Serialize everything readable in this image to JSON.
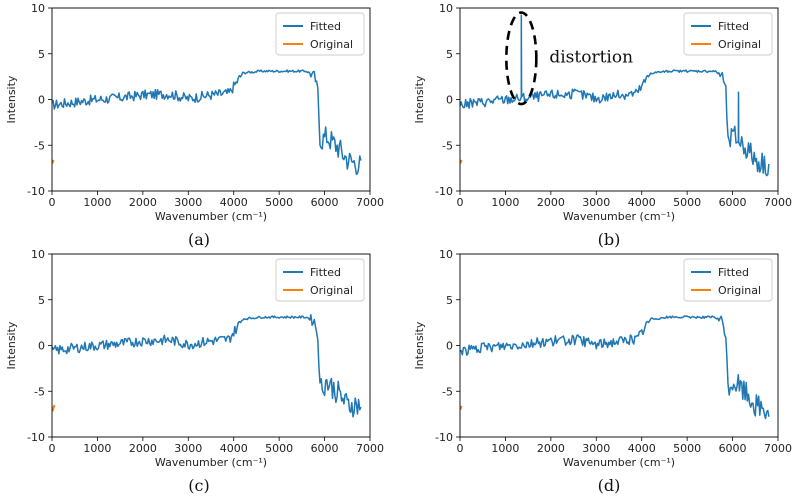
{
  "chart_data": [
    {
      "type": "line",
      "panel": "(a)",
      "xlabel": "Wavenumber (cm⁻¹)",
      "ylabel": "Intensity",
      "xlim": [
        0,
        7000
      ],
      "ylim": [
        -10,
        10
      ],
      "xticks": [
        "0",
        "1000",
        "2000",
        "3000",
        "4000",
        "5000",
        "6000",
        "7000"
      ],
      "yticks": [
        "10",
        "5",
        "0",
        "-5",
        "-10"
      ],
      "legend": {
        "position": "top-right",
        "entries": [
          "Fitted",
          "Original"
        ]
      },
      "series": [
        {
          "name": "Fitted",
          "color": "#1f77b4",
          "x_range": [
            0,
            6800
          ],
          "spike": null,
          "profile": [
            [
              0,
              -0.6
            ],
            [
              300,
              -0.4
            ],
            [
              800,
              -0.1
            ],
            [
              1500,
              0.2
            ],
            [
              2000,
              0.5
            ],
            [
              2600,
              0.6
            ],
            [
              3000,
              0.1
            ],
            [
              3500,
              0.5
            ],
            [
              3900,
              0.7
            ],
            [
              4050,
              1.8
            ],
            [
              4200,
              2.9
            ],
            [
              4600,
              3.1
            ],
            [
              5200,
              3.1
            ],
            [
              5600,
              3.1
            ],
            [
              5780,
              2.6
            ],
            [
              5850,
              1.0
            ],
            [
              5900,
              -4.5
            ],
            [
              6050,
              -4.0
            ],
            [
              6300,
              -5.2
            ],
            [
              6500,
              -6.5
            ],
            [
              6800,
              -7.2
            ]
          ]
        },
        {
          "name": "Original",
          "color": "#ff7f0e",
          "x_range": [
            0,
            20
          ],
          "y_range": [
            -7.0,
            -6.6
          ]
        }
      ]
    },
    {
      "type": "line",
      "panel": "(b)",
      "xlabel": "Wavenumber (cm⁻¹)",
      "ylabel": "Intensity",
      "xlim": [
        0,
        7000
      ],
      "ylim": [
        -10,
        10
      ],
      "xticks": [
        "0",
        "1000",
        "2000",
        "3000",
        "4000",
        "5000",
        "6000",
        "7000"
      ],
      "yticks": [
        "10",
        "5",
        "0",
        "-5",
        "-10"
      ],
      "legend": {
        "position": "top-right",
        "entries": [
          "Fitted",
          "Original"
        ]
      },
      "annotation": {
        "text": "distortion",
        "x": 1350,
        "y_range": [
          -0.5,
          9.5
        ]
      },
      "series": [
        {
          "name": "Fitted",
          "color": "#1f77b4",
          "x_range": [
            0,
            6800
          ],
          "spike": {
            "x": 1350,
            "y": 9.2
          },
          "extra_spike": {
            "x": 6130,
            "y": 0.8
          },
          "profile": [
            [
              0,
              -0.6
            ],
            [
              300,
              -0.4
            ],
            [
              800,
              -0.1
            ],
            [
              1500,
              0.2
            ],
            [
              2000,
              0.5
            ],
            [
              2600,
              0.6
            ],
            [
              3000,
              0.1
            ],
            [
              3500,
              0.5
            ],
            [
              3900,
              0.7
            ],
            [
              4050,
              1.8
            ],
            [
              4200,
              2.9
            ],
            [
              4600,
              3.1
            ],
            [
              5200,
              3.1
            ],
            [
              5600,
              3.1
            ],
            [
              5780,
              2.6
            ],
            [
              5850,
              1.0
            ],
            [
              5900,
              -4.5
            ],
            [
              6050,
              -4.0
            ],
            [
              6300,
              -5.2
            ],
            [
              6500,
              -6.5
            ],
            [
              6800,
              -7.2
            ]
          ]
        },
        {
          "name": "Original",
          "color": "#ff7f0e",
          "x_range": [
            0,
            20
          ],
          "y_range": [
            -7.0,
            -6.6
          ]
        }
      ]
    },
    {
      "type": "line",
      "panel": "(c)",
      "xlabel": "Wavenumber (cm⁻¹)",
      "ylabel": "Intensity",
      "xlim": [
        0,
        7000
      ],
      "ylim": [
        -10,
        10
      ],
      "xticks": [
        "0",
        "1000",
        "2000",
        "3000",
        "4000",
        "5000",
        "6000",
        "7000"
      ],
      "yticks": [
        "10",
        "5",
        "0",
        "-5",
        "-10"
      ],
      "legend": {
        "position": "top-right",
        "entries": [
          "Fitted",
          "Original"
        ]
      },
      "series": [
        {
          "name": "Fitted",
          "color": "#1f77b4",
          "x_range": [
            0,
            6800
          ],
          "spike": null,
          "profile": [
            [
              0,
              -0.6
            ],
            [
              300,
              -0.4
            ],
            [
              800,
              -0.1
            ],
            [
              1500,
              0.2
            ],
            [
              2000,
              0.5
            ],
            [
              2600,
              0.6
            ],
            [
              3000,
              0.1
            ],
            [
              3500,
              0.5
            ],
            [
              3900,
              0.7
            ],
            [
              4050,
              1.8
            ],
            [
              4200,
              2.9
            ],
            [
              4600,
              3.1
            ],
            [
              5200,
              3.1
            ],
            [
              5600,
              3.1
            ],
            [
              5780,
              2.6
            ],
            [
              5850,
              1.0
            ],
            [
              5900,
              -4.5
            ],
            [
              6050,
              -4.0
            ],
            [
              6300,
              -5.2
            ],
            [
              6500,
              -6.5
            ],
            [
              6800,
              -6.5
            ]
          ]
        },
        {
          "name": "Original",
          "color": "#ff7f0e",
          "x_range": [
            0,
            40
          ],
          "y_range": [
            -7.2,
            -6.5
          ]
        }
      ]
    },
    {
      "type": "line",
      "panel": "(d)",
      "xlabel": "Wavenumber (cm⁻¹)",
      "ylabel": "Intensity",
      "xlim": [
        0,
        7000
      ],
      "ylim": [
        -10,
        10
      ],
      "xticks": [
        "0",
        "1000",
        "2000",
        "3000",
        "4000",
        "5000",
        "6000",
        "7000"
      ],
      "yticks": [
        "10",
        "5",
        "0",
        "-5",
        "-10"
      ],
      "legend": {
        "position": "top-right",
        "entries": [
          "Fitted",
          "Original"
        ]
      },
      "series": [
        {
          "name": "Fitted",
          "color": "#1f77b4",
          "x_range": [
            0,
            6800
          ],
          "spike": null,
          "profile": [
            [
              0,
              -0.6
            ],
            [
              300,
              -0.4
            ],
            [
              800,
              -0.1
            ],
            [
              1500,
              0.2
            ],
            [
              2000,
              0.5
            ],
            [
              2600,
              0.6
            ],
            [
              3000,
              0.1
            ],
            [
              3500,
              0.5
            ],
            [
              3900,
              0.7
            ],
            [
              4050,
              1.8
            ],
            [
              4200,
              2.9
            ],
            [
              4600,
              3.1
            ],
            [
              5200,
              3.1
            ],
            [
              5600,
              3.1
            ],
            [
              5780,
              2.6
            ],
            [
              5850,
              1.0
            ],
            [
              5900,
              -4.5
            ],
            [
              6050,
              -4.0
            ],
            [
              6300,
              -5.2
            ],
            [
              6500,
              -6.5
            ],
            [
              6800,
              -7.2
            ]
          ]
        },
        {
          "name": "Original",
          "color": "#ff7f0e",
          "x_range": [
            0,
            20
          ],
          "y_range": [
            -7.0,
            -6.6
          ]
        }
      ]
    }
  ]
}
